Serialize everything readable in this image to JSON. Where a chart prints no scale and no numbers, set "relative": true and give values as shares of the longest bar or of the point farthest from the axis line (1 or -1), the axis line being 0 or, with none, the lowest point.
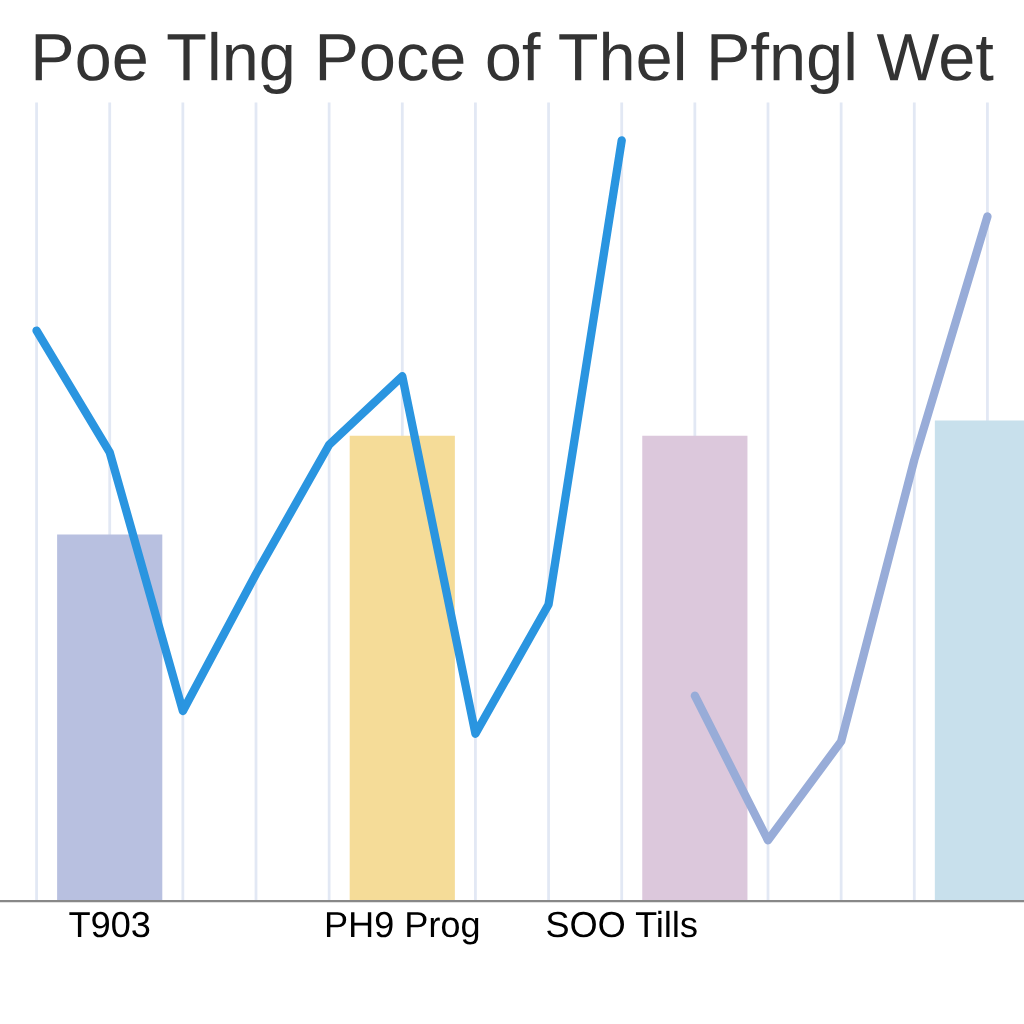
{
  "chart_data": {
    "type": "bar",
    "title": "Poe Tlng Poce of Thel Pfngl Wet",
    "relative": true,
    "grid": true,
    "categories": [
      null,
      "T903",
      null,
      null,
      null,
      "PH9 Prog",
      null,
      null,
      "SOO Tills",
      null,
      null,
      null,
      null,
      null
    ],
    "colors": [
      "#b8c0e0",
      "#b8c0e0",
      "#b8c0e0",
      "#b8c0e0",
      "#b8c0e0",
      "#f5dc98",
      "#f5dc98",
      "#f5dc98",
      "#f5dc98",
      "#dcc8dc",
      "#dcc8dc",
      "#dcc8dc",
      "#dcc8dc",
      "#c8e0ec"
    ],
    "values": [
      null,
      0.48,
      null,
      null,
      null,
      0.61,
      null,
      null,
      null,
      0.61,
      null,
      null,
      null,
      0.63
    ],
    "series": [
      {
        "type": "line",
        "color": "#2a95e0",
        "values": [
          0.75,
          0.59,
          0.25,
          0.43,
          0.6,
          0.69,
          0.22,
          0.39,
          1.0,
          null,
          null,
          null,
          null,
          null
        ]
      },
      {
        "type": "line",
        "color": "#98acd8",
        "values": [
          null,
          null,
          null,
          null,
          null,
          null,
          null,
          null,
          null,
          0.27,
          0.08,
          0.21,
          0.58,
          0.9
        ]
      }
    ]
  }
}
